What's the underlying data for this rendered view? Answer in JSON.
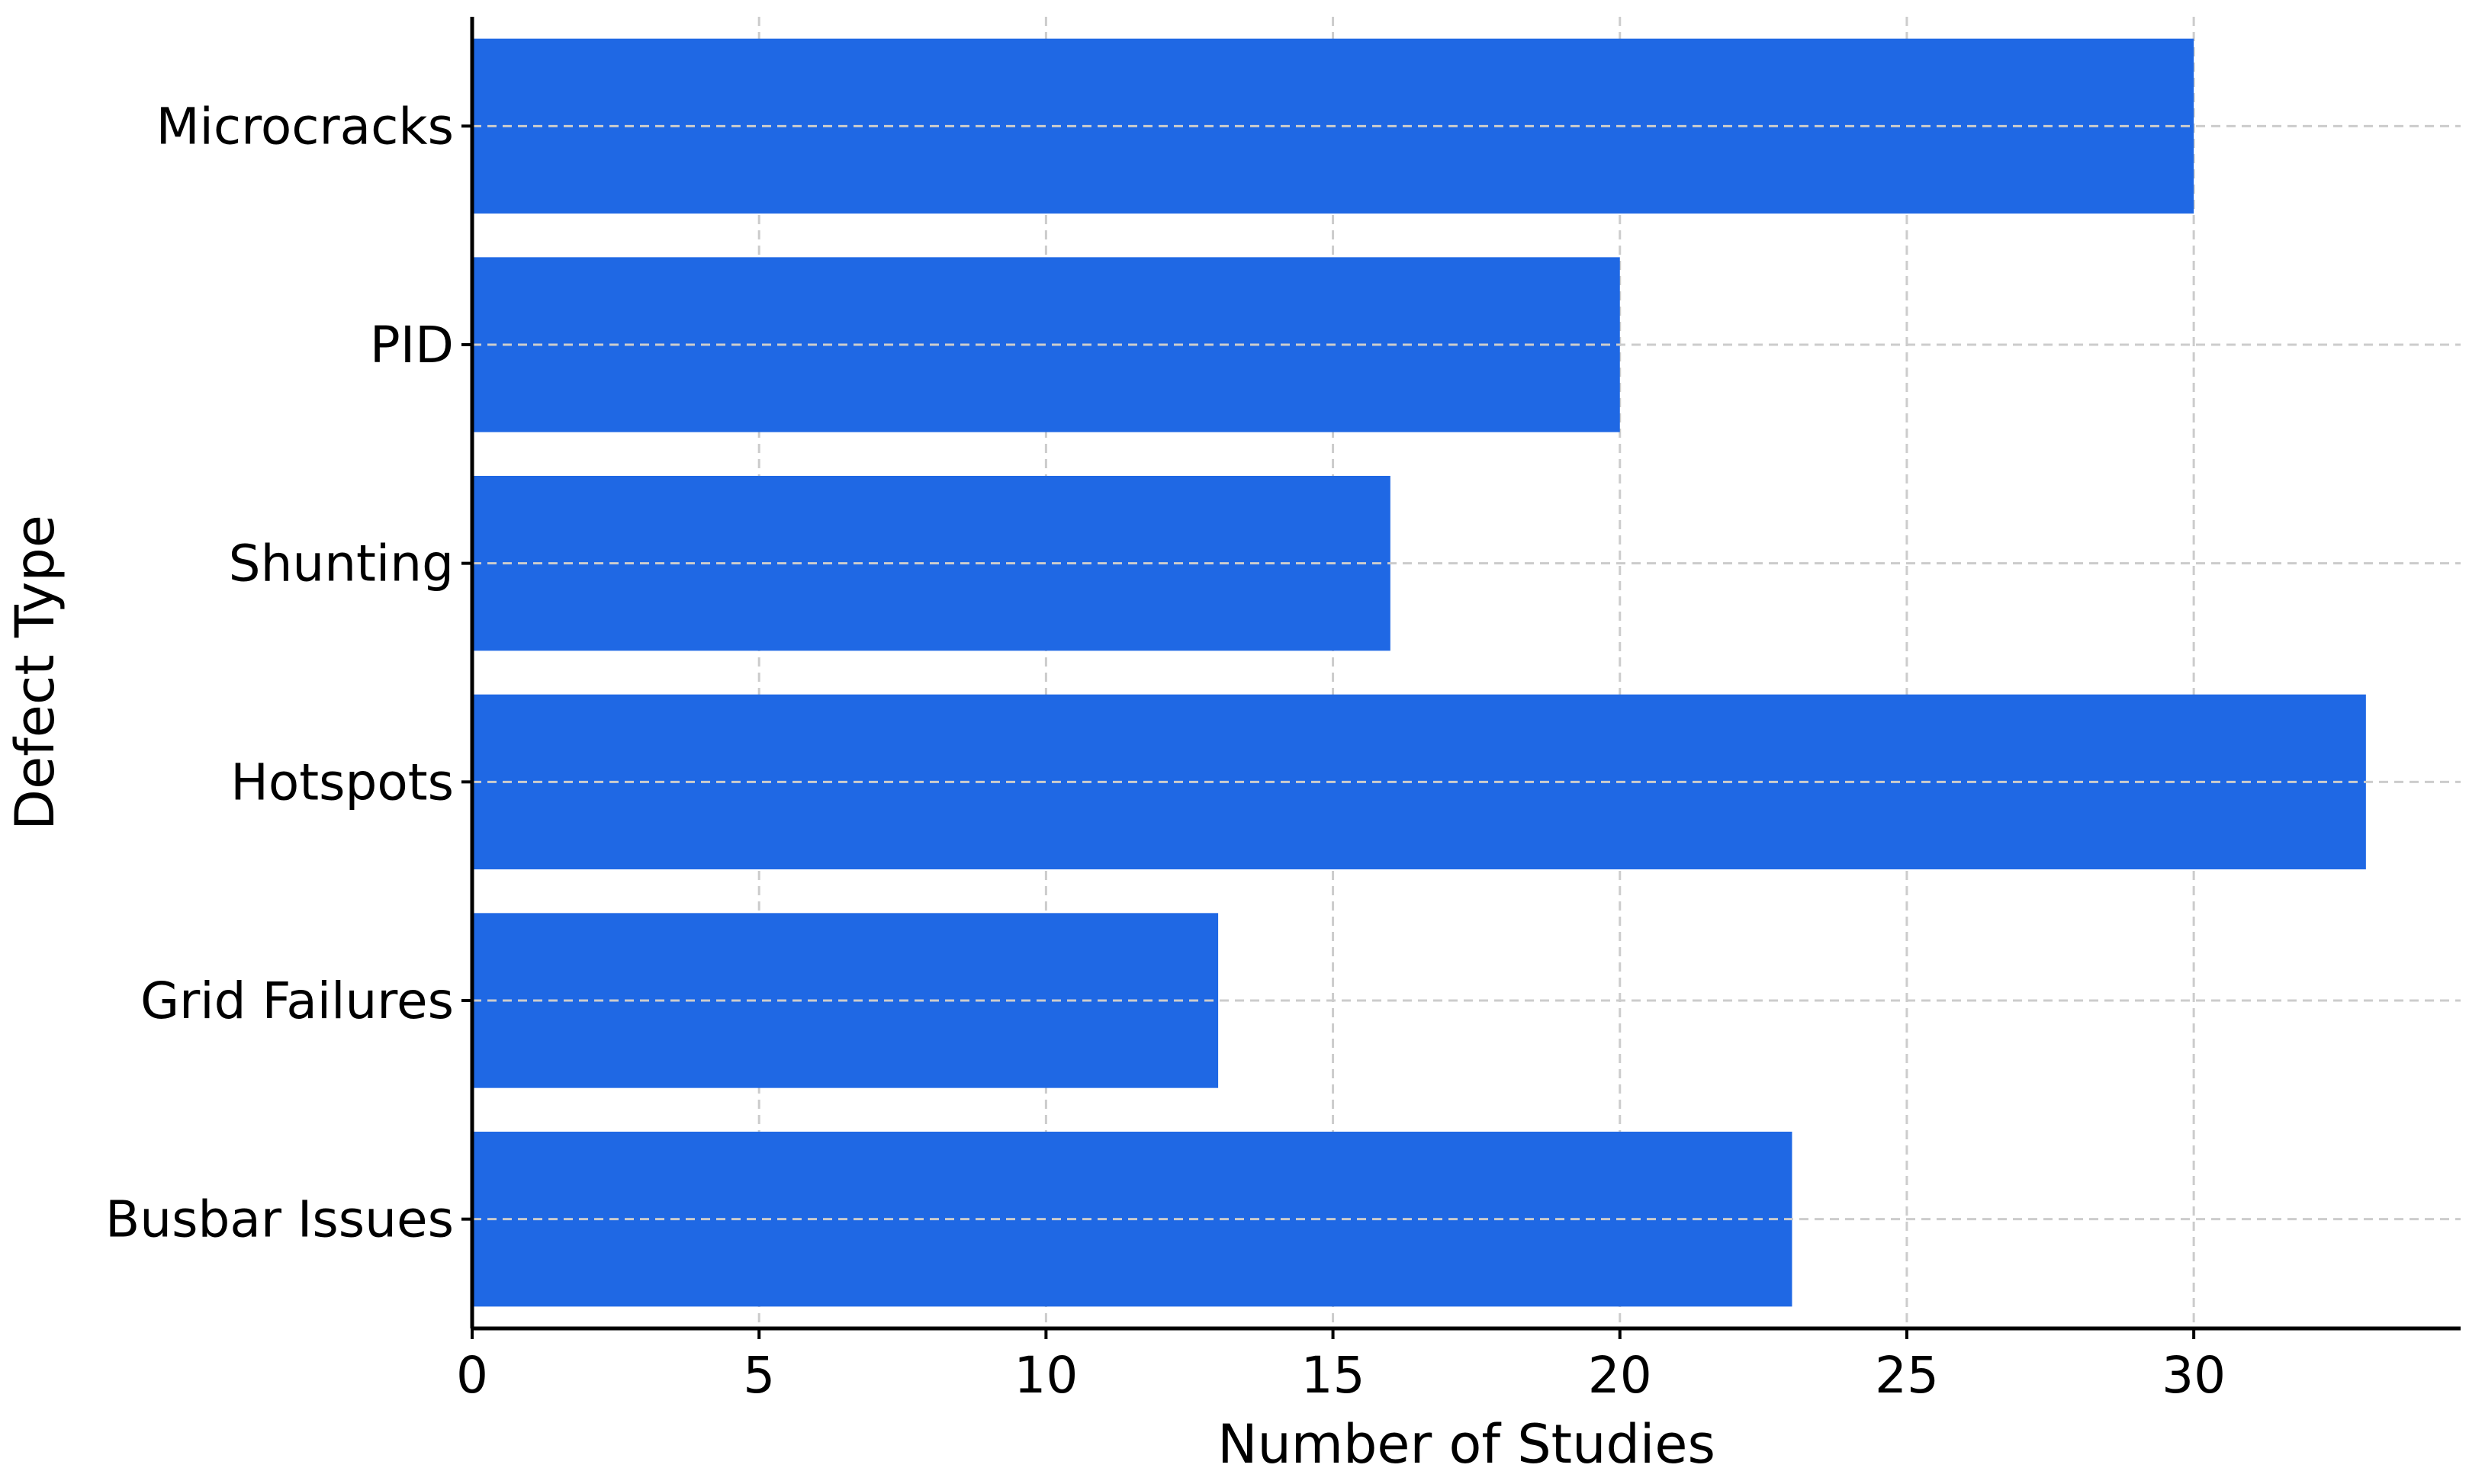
{
  "chart_data": {
    "type": "bar",
    "orientation": "horizontal",
    "title": "",
    "xlabel": "Number of Studies",
    "ylabel": "Defect Type",
    "categories": [
      "Microcracks",
      "PID",
      "Shunting",
      "Hotspots",
      "Grid Failures",
      "Busbar Issues"
    ],
    "values": [
      30,
      20,
      16,
      33,
      13,
      23
    ],
    "xlim": [
      0,
      34.65
    ],
    "xticks": [
      "0",
      "5",
      "10",
      "15",
      "20",
      "25",
      "30"
    ],
    "grid": true,
    "legend": "none",
    "bar_color": "#1f68e4"
  }
}
